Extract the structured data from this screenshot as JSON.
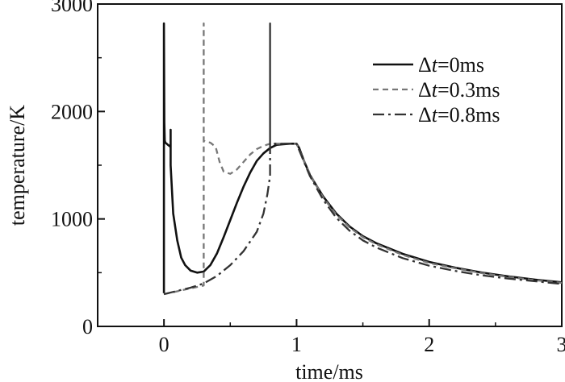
{
  "chart_data": {
    "type": "line",
    "xlabel": "time/ms",
    "ylabel": "temperature/K",
    "xlim": [
      -0.5,
      3
    ],
    "ylim": [
      0,
      3000
    ],
    "xticks": [
      0,
      1,
      2,
      3
    ],
    "xtick_labels": [
      "0",
      "1",
      "2",
      "3"
    ],
    "yticks": [
      0,
      1000,
      2000,
      3000
    ],
    "ytick_labels": [
      "0",
      "1000",
      "2000",
      "3000"
    ],
    "grid": false,
    "legend_position": "top-right",
    "series": [
      {
        "name": "Δt=0ms",
        "legend_prefix": "Δ",
        "legend_var": "t",
        "legend_suffix": "=0ms",
        "style": "solid",
        "color": "#111111",
        "x": [
          0,
          0,
          0.003,
          0.006,
          0.01,
          0.02,
          0.03,
          0.04,
          0.05,
          0.05,
          0.05,
          0.07,
          0.1,
          0.13,
          0.16,
          0.2,
          0.25,
          0.3,
          0.35,
          0.4,
          0.45,
          0.5,
          0.55,
          0.6,
          0.65,
          0.7,
          0.75,
          0.8,
          0.85,
          0.9,
          0.95,
          1.0,
          1.02,
          1.05,
          1.1,
          1.2,
          1.3,
          1.4,
          1.5,
          1.6,
          1.8,
          2.0,
          2.2,
          2.4,
          2.6,
          2.8,
          3.0
        ],
        "y": [
          310,
          2820,
          1900,
          1730,
          1710,
          1700,
          1690,
          1680,
          1670,
          1830,
          1500,
          1050,
          800,
          640,
          570,
          520,
          500,
          510,
          570,
          680,
          830,
          990,
          1150,
          1300,
          1430,
          1540,
          1610,
          1660,
          1690,
          1695,
          1700,
          1700,
          1660,
          1560,
          1410,
          1210,
          1050,
          930,
          840,
          775,
          675,
          600,
          545,
          500,
          465,
          435,
          410
        ]
      },
      {
        "name": "Δt=0.3ms",
        "legend_prefix": "Δ",
        "legend_var": "t",
        "legend_suffix": "=0.3ms",
        "style": "dashed",
        "color": "#777777",
        "x": [
          0,
          0.3,
          0.3,
          0.3,
          0.31,
          0.35,
          0.39,
          0.42,
          0.45,
          0.5,
          0.55,
          0.6,
          0.65,
          0.7,
          0.75,
          0.8,
          0.85,
          0.9,
          0.95,
          1.0,
          1.05,
          1.1,
          1.2,
          1.3,
          1.4,
          1.5,
          1.6,
          1.8,
          2.0,
          2.2,
          2.4,
          2.6,
          2.8,
          3.0
        ],
        "y": [
          300,
          380,
          2820,
          1730,
          1720,
          1710,
          1670,
          1530,
          1440,
          1420,
          1460,
          1530,
          1600,
          1650,
          1680,
          1700,
          1700,
          1700,
          1700,
          1700,
          1560,
          1420,
          1200,
          1040,
          920,
          830,
          765,
          665,
          590,
          540,
          495,
          460,
          430,
          405
        ]
      },
      {
        "name": "Δt=0.8ms",
        "legend_prefix": "Δ",
        "legend_var": "t",
        "legend_suffix": "=0.8ms",
        "style": "dashdot",
        "color": "#333333",
        "x": [
          0,
          0.2,
          0.3,
          0.4,
          0.5,
          0.6,
          0.7,
          0.75,
          0.78,
          0.8,
          0.8,
          0.8,
          0.85,
          0.9,
          0.95,
          1.0,
          1.05,
          1.1,
          1.2,
          1.3,
          1.4,
          1.5,
          1.6,
          1.8,
          2.0,
          2.2,
          2.4,
          2.6,
          2.8,
          3.0
        ],
        "y": [
          300,
          360,
          400,
          470,
          570,
          700,
          880,
          1050,
          1230,
          1400,
          2820,
          1700,
          1700,
          1700,
          1700,
          1700,
          1550,
          1400,
          1180,
          1010,
          890,
          800,
          735,
          635,
          565,
          515,
          475,
          445,
          420,
          395
        ]
      }
    ]
  }
}
